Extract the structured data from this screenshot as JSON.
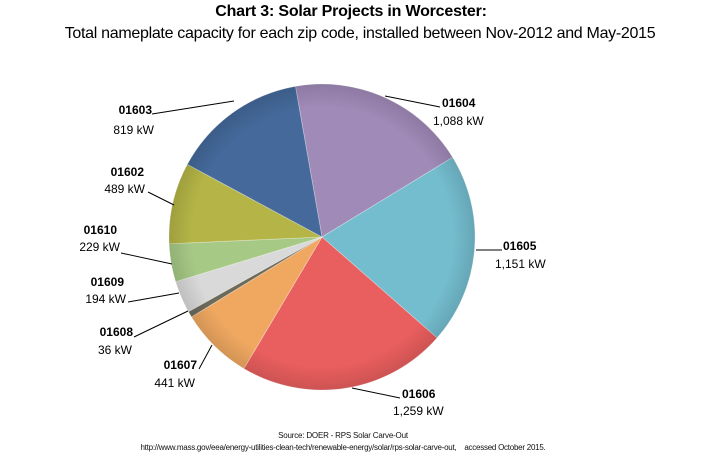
{
  "chart_data": {
    "type": "pie",
    "title": "Chart 3: Solar Projects in Worcester:",
    "subtitle": "Total nameplate capacity for each zip code, installed between Nov-2012 and May-2015",
    "unit": "kW",
    "start_angle_deg": -10,
    "direction": "clockwise",
    "slices": [
      {
        "label": "01604",
        "value": 1088,
        "value_text": "1,088 kW",
        "color": "#A08AB8"
      },
      {
        "label": "01605",
        "value": 1151,
        "value_text": "1,151 kW",
        "color": "#74BDCF"
      },
      {
        "label": "01606",
        "value": 1259,
        "value_text": "1,259 kW",
        "color": "#E95E5E"
      },
      {
        "label": "01607",
        "value": 441,
        "value_text": "441 kW",
        "color": "#F0A861"
      },
      {
        "label": "01608",
        "value": 36,
        "value_text": "36 kW",
        "color": "#6E6A5A"
      },
      {
        "label": "01609",
        "value": 194,
        "value_text": "194 kW",
        "color": "#D9D9D9"
      },
      {
        "label": "01610",
        "value": 229,
        "value_text": "229 kW",
        "color": "#A6C986"
      },
      {
        "label": "01602",
        "value": 489,
        "value_text": "489 kW",
        "color": "#B4B546"
      },
      {
        "label": "01603",
        "value": 819,
        "value_text": "819 kW",
        "color": "#44699A"
      }
    ],
    "legend": "none"
  },
  "source": "Source:  DOER - RPS Solar Carve-Out",
  "url_line": "http://www.mass.gov/eea/energy-utilities-clean-tech/renewable-energy/solar/rps-solar-carve-out,    accessed October 2015."
}
